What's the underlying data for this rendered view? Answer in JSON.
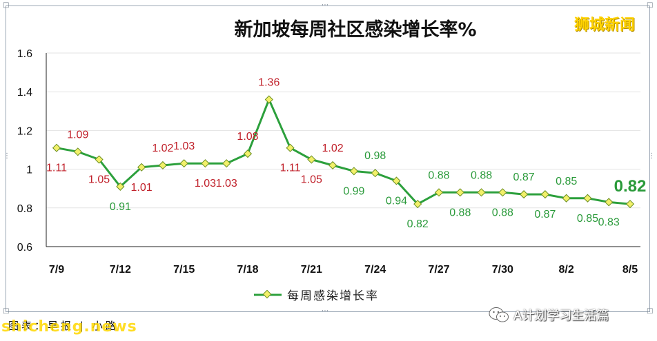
{
  "brand_watermark": "狮城新闻",
  "caption": "图表：早报 | 小路",
  "source_watermark": "shicheng.news",
  "account_label": "A计划学习生活篇",
  "chart_data": {
    "type": "line",
    "title": "新加坡每周社区感染增长率%",
    "xlabel": "",
    "ylabel": "",
    "x": [
      "7/9",
      "7/10",
      "7/11",
      "7/12",
      "7/13",
      "7/14",
      "7/15",
      "7/16",
      "7/17",
      "7/18",
      "7/19",
      "7/20",
      "7/21",
      "7/22",
      "7/23",
      "7/24",
      "7/25",
      "7/26",
      "7/27",
      "7/28",
      "7/29",
      "7/30",
      "7/31",
      "8/1",
      "8/2",
      "8/3",
      "8/4",
      "8/5"
    ],
    "xtick_labels": [
      "7/9",
      "7/12",
      "7/15",
      "7/18",
      "7/21",
      "7/24",
      "7/27",
      "7/30",
      "8/2",
      "8/5"
    ],
    "ylim": [
      0.6,
      1.6
    ],
    "yticks": [
      "0.6",
      "0.8",
      "1",
      "1.2",
      "1.4",
      "1.6"
    ],
    "grid": true,
    "legend_position": "bottom",
    "series": [
      {
        "name": "每周感染增长率",
        "values": [
          1.11,
          1.09,
          1.05,
          0.91,
          1.01,
          1.02,
          1.03,
          1.03,
          1.03,
          1.08,
          1.36,
          1.11,
          1.05,
          1.02,
          0.99,
          0.98,
          0.94,
          0.82,
          0.88,
          0.88,
          0.88,
          0.88,
          0.87,
          0.87,
          0.85,
          0.85,
          0.83,
          0.82
        ],
        "labels": [
          "1.11",
          "1.09",
          "1.05",
          "0.91",
          "1.01",
          "1.02",
          "1.03",
          "1.03",
          "1.03",
          "1.08",
          "1.36",
          "1.11",
          "1.05",
          "1.02",
          "0.99",
          "0.98",
          "0.94",
          "0.82",
          "0.88",
          "0.88",
          "0.88",
          "0.88",
          "0.87",
          "0.87",
          "0.85",
          "0.85",
          "0.83",
          "0.82"
        ],
        "line_color": "#2ca03c",
        "marker_color": "#f2f06a",
        "label_color_above_1": "#c0202a",
        "label_color_below_1": "#2a9a3a"
      }
    ]
  }
}
